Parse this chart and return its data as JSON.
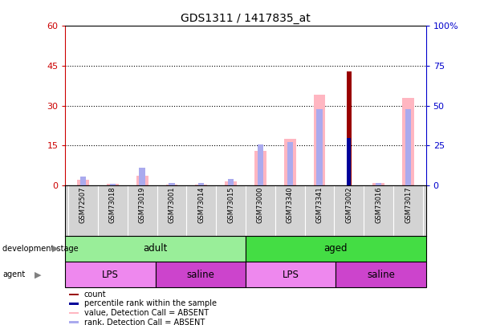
{
  "title": "GDS1311 / 1417835_at",
  "samples": [
    "GSM72507",
    "GSM73018",
    "GSM73019",
    "GSM73001",
    "GSM73014",
    "GSM73015",
    "GSM73000",
    "GSM73340",
    "GSM73341",
    "GSM73002",
    "GSM73016",
    "GSM73017"
  ],
  "value_absent": [
    2.0,
    0.5,
    3.5,
    0.3,
    0.3,
    1.5,
    13.0,
    17.5,
    34.0,
    null,
    1.0,
    33.0
  ],
  "rank_absent": [
    5.5,
    1.0,
    11.0,
    1.5,
    1.5,
    4.0,
    25.5,
    27.0,
    48.0,
    null,
    1.5,
    48.0
  ],
  "count_present": [
    null,
    null,
    null,
    null,
    null,
    null,
    null,
    null,
    null,
    43.0,
    null,
    null
  ],
  "percentile_present": [
    null,
    null,
    null,
    null,
    null,
    null,
    null,
    null,
    null,
    29.5,
    null,
    null
  ],
  "development_stages": [
    {
      "label": "adult",
      "start": 0,
      "end": 6,
      "color": "#99EE99"
    },
    {
      "label": "aged",
      "start": 6,
      "end": 12,
      "color": "#44DD44"
    }
  ],
  "agents": [
    {
      "label": "LPS",
      "start": 0,
      "end": 3,
      "color": "#EE88EE"
    },
    {
      "label": "saline",
      "start": 3,
      "end": 6,
      "color": "#CC44CC"
    },
    {
      "label": "LPS",
      "start": 6,
      "end": 9,
      "color": "#EE88EE"
    },
    {
      "label": "saline",
      "start": 9,
      "end": 12,
      "color": "#CC44CC"
    }
  ],
  "left_ylim": [
    0,
    60
  ],
  "right_ylim": [
    0,
    100
  ],
  "left_yticks": [
    0,
    15,
    30,
    45,
    60
  ],
  "right_yticks": [
    0,
    25,
    50,
    75,
    100
  ],
  "left_ycolor": "#CC0000",
  "right_ycolor": "#0000CC",
  "value_absent_color": "#FFB6C1",
  "rank_absent_color": "#AAAAEE",
  "count_color": "#990000",
  "percentile_color": "#000099",
  "dotted_lines": [
    15,
    30,
    45
  ],
  "xlabels_bg": "#D3D3D3",
  "plot_bg": "#FFFFFF",
  "legend_items": [
    {
      "color": "#990000",
      "label": "count"
    },
    {
      "color": "#000099",
      "label": "percentile rank within the sample"
    },
    {
      "color": "#FFB6C1",
      "label": "value, Detection Call = ABSENT"
    },
    {
      "color": "#AAAAEE",
      "label": "rank, Detection Call = ABSENT"
    }
  ]
}
